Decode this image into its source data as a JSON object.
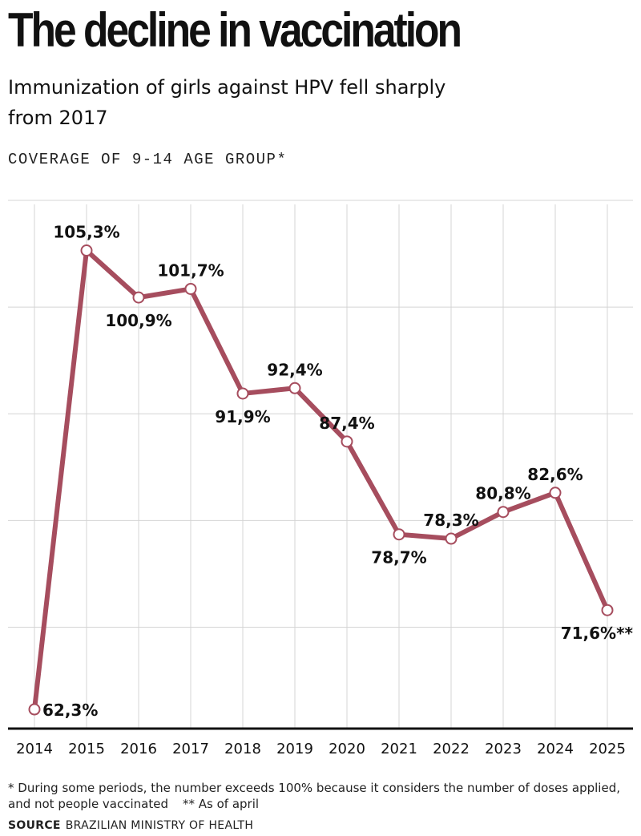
{
  "header": {
    "title": "The decline in vaccination",
    "subtitle": "Immunization of girls against HPV fell sharply from 2017",
    "unit_label": "COVERAGE OF 9-14 AGE GROUP*"
  },
  "footer": {
    "note1": "* During some periods, the number exceeds 100% because it considers the number of doses applied, and not people vaccinated",
    "note2": "** As of april",
    "source_label": "SOURCE",
    "source_text": "BRAZILIAN MINISTRY OF HEALTH"
  },
  "colors": {
    "line": "#a64d5e",
    "grid": "#d4d4d4",
    "axis": "#111111",
    "marker_fill": "#ffffff"
  },
  "chart_data": {
    "type": "line",
    "x": [
      "2014",
      "2015",
      "2016",
      "2017",
      "2018",
      "2019",
      "2020",
      "2021",
      "2022",
      "2023",
      "2024",
      "2025"
    ],
    "series": [
      {
        "values": [
          62.3,
          105.3,
          100.9,
          101.7,
          91.9,
          92.4,
          87.4,
          78.7,
          78.3,
          80.8,
          82.6,
          71.6
        ],
        "labels": [
          "62,3%",
          "105,3%",
          "100,9%",
          "101,7%",
          "91,9%",
          "92,4%",
          "87,4%",
          "78,7%",
          "78,3%",
          "80,8%",
          "82,6%",
          "71,6%**"
        ],
        "label_positions": [
          "right",
          "above",
          "below",
          "above",
          "below",
          "above",
          "above",
          "below",
          "above",
          "above",
          "above",
          "below"
        ]
      }
    ],
    "ylim": [
      60.5,
      111.5
    ],
    "y_gridlines": [
      70,
      80,
      90,
      100,
      110
    ],
    "y_tick_labels_shown": false,
    "grid": true,
    "legend": "none"
  }
}
